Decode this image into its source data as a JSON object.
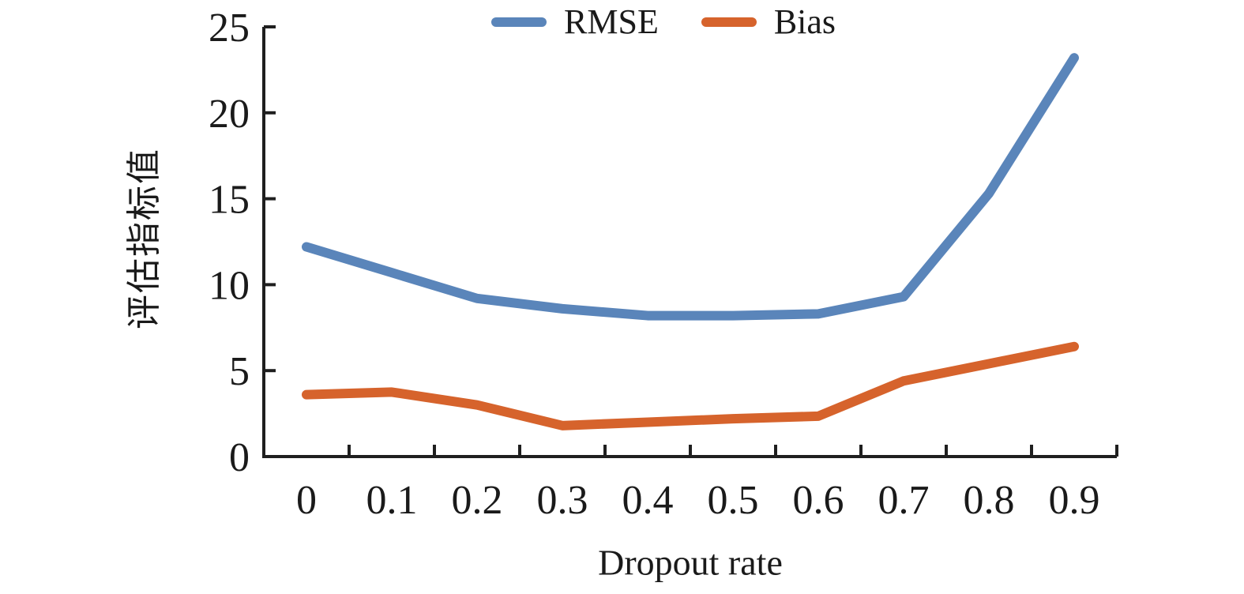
{
  "chart_data": {
    "type": "line",
    "title": "",
    "xlabel": "Dropout rate",
    "ylabel": "评估指标值",
    "categories": [
      "0",
      "0.1",
      "0.2",
      "0.3",
      "0.4",
      "0.5",
      "0.6",
      "0.7",
      "0.8",
      "0.9"
    ],
    "series": [
      {
        "name": "RMSE",
        "color": "#5a85ba",
        "values": [
          12.2,
          10.7,
          9.2,
          8.6,
          8.2,
          8.2,
          8.3,
          9.3,
          15.3,
          23.2
        ]
      },
      {
        "name": "Bias",
        "color": "#d6632c",
        "values": [
          3.6,
          3.75,
          3.0,
          1.8,
          2.0,
          2.2,
          2.35,
          4.4,
          5.4,
          6.4
        ]
      }
    ],
    "ylim": [
      0,
      25
    ],
    "y_ticks": [
      0,
      5,
      10,
      15,
      20,
      25
    ],
    "grid": false,
    "legend_position": "top-center",
    "axis_color": "#1f1f1f",
    "text_color": "#1a1a1a"
  }
}
